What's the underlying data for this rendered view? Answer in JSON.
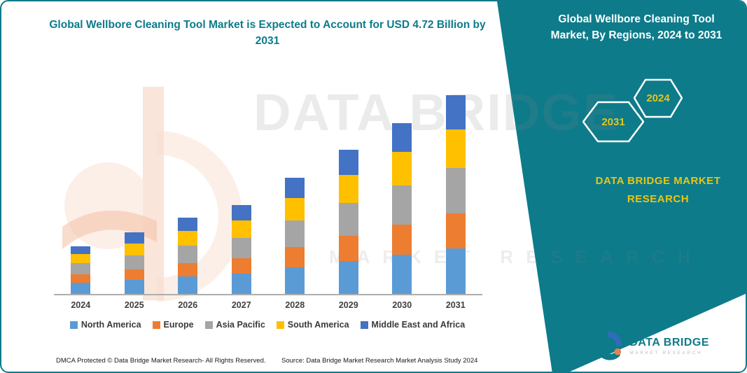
{
  "page": {
    "border_color": "#0d7b8a",
    "background": "#ffffff"
  },
  "title": {
    "text": "Global Wellbore Cleaning Tool Market is Expected to Account for USD 4.72 Billion by 2031"
  },
  "banner": {
    "title": "Global Wellbore Cleaning Tool Market, By Regions, 2024 to 2031",
    "hexagon_years": [
      "2031",
      "2024"
    ],
    "brand_text": "DATA BRIDGE MARKET RESEARCH",
    "bg_color": "#0d7b8a",
    "year_color": "#e9c516"
  },
  "watermark": {
    "line1": "DATA BRIDGE",
    "line2": "MARKET RESEARCH"
  },
  "chart_data": {
    "type": "bar",
    "stacked": true,
    "title": "Global Wellbore Cleaning Tool Market is Expected to Account for USD 4.72 Billion by 2031",
    "unit": "USD Billion",
    "categories": [
      "2024",
      "2025",
      "2026",
      "2027",
      "2028",
      "2029",
      "2030",
      "2031"
    ],
    "series": [
      {
        "name": "North America",
        "color": "#5B9BD5",
        "values": [
          0.26,
          0.33,
          0.41,
          0.49,
          0.64,
          0.79,
          0.94,
          1.08
        ]
      },
      {
        "name": "Europe",
        "color": "#ED7D31",
        "values": [
          0.2,
          0.25,
          0.31,
          0.37,
          0.49,
          0.6,
          0.72,
          0.83
        ]
      },
      {
        "name": "Asia Pacific",
        "color": "#A5A5A5",
        "values": [
          0.26,
          0.33,
          0.41,
          0.49,
          0.64,
          0.79,
          0.94,
          1.08
        ]
      },
      {
        "name": "South America",
        "color": "#FFC000",
        "values": [
          0.22,
          0.28,
          0.35,
          0.41,
          0.54,
          0.67,
          0.8,
          0.92
        ]
      },
      {
        "name": "Middle East and Africa",
        "color": "#4472C4",
        "values": [
          0.19,
          0.26,
          0.31,
          0.36,
          0.48,
          0.6,
          0.69,
          0.81
        ]
      }
    ],
    "totals": [
      1.13,
      1.45,
      1.79,
      2.12,
      2.79,
      3.45,
      4.09,
      4.72
    ],
    "xlabel": "",
    "ylabel": "",
    "ylim": [
      0,
      5
    ],
    "grid": false,
    "y_axis_visible": false,
    "legend_position": "bottom"
  },
  "footer": {
    "dmca": "DMCA Protected © Data Bridge Market Research-  All Rights Reserved.",
    "source": "Source: Data Bridge Market Research  Market Analysis Study 2024"
  },
  "logo": {
    "name": "DATA BRIDGE",
    "tagline": "MARKET RESEARCH"
  }
}
